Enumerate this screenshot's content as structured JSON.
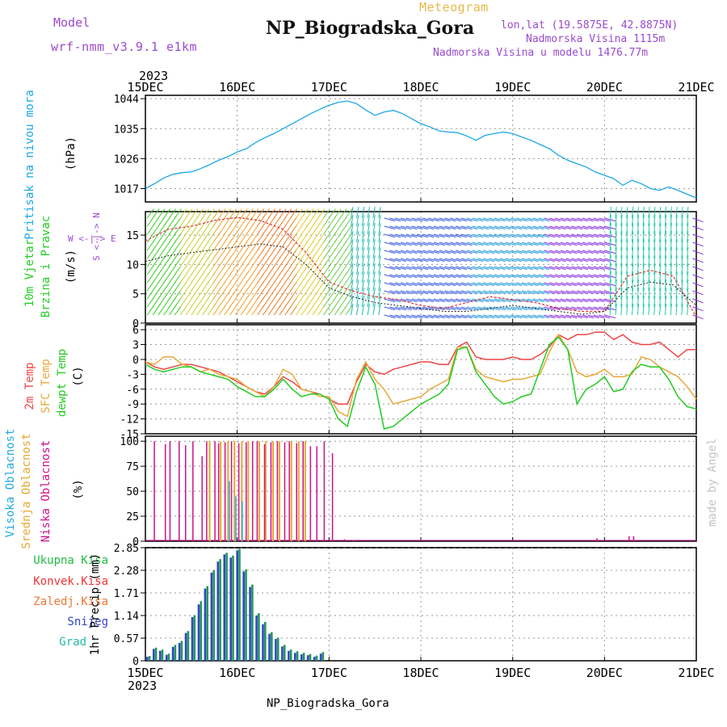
{
  "header": {
    "model_label": "Model",
    "model_name": "wrf-nmm_v3.9.1 e1km",
    "meteogram_label": "Meteogram",
    "station_title": "NP_Biogradska_Gora",
    "lonlat": "lon,lat (19.5875E, 42.8875N)",
    "altitude": "Nadmorska Visina 1115m",
    "model_altitude": "Nadmorska Visina u modelu 1476.77m",
    "year_top": "2023",
    "year_bottom": "2023",
    "footer_station": "NP_Biogradska_Gora",
    "credit": "made by Angel"
  },
  "colors": {
    "pressure": "#1ba7e8",
    "temp2m": "#ee4444",
    "sfc_temp": "#e8a838",
    "dewpt": "#22cc22",
    "high_cloud": "#22aadd",
    "mid_cloud": "#e8a830",
    "low_cloud": "#cc1188",
    "total_precip": "#22bb44",
    "conv_precip": "#ee3333",
    "freezing_precip": "#ee7733",
    "snow": "#3344cc",
    "hail": "#22bbaa",
    "purple_text": "#9a4ad0",
    "gold_text": "#e8b84a"
  },
  "chart_data": [
    {
      "type": "line",
      "id": "pressure",
      "ylabel_main": "Pritisak na nivou mora",
      "ylabel_unit": "(hPa)",
      "x_tick_labels": [
        "15DEC",
        "16DEC",
        "17DEC",
        "18DEC",
        "19DEC",
        "20DEC",
        "21DEC"
      ],
      "ylim": [
        1013,
        1045
      ],
      "yticks": [
        1017,
        1026,
        1035,
        1044
      ],
      "grid": true,
      "x_days": [
        0,
        0.1,
        0.2,
        0.3,
        0.4,
        0.5,
        0.6,
        0.7,
        0.8,
        0.9,
        1.0,
        1.1,
        1.2,
        1.3,
        1.4,
        1.5,
        1.6,
        1.7,
        1.8,
        1.9,
        2.0,
        2.1,
        2.2,
        2.3,
        2.4,
        2.5,
        2.6,
        2.7,
        2.8,
        2.9,
        3.0,
        3.1,
        3.2,
        3.3,
        3.4,
        3.5,
        3.6,
        3.7,
        3.8,
        3.9,
        4.0,
        4.1,
        4.2,
        4.3,
        4.4,
        4.5,
        4.6,
        4.7,
        4.8,
        4.9,
        5.0,
        5.1,
        5.2,
        5.3,
        5.4,
        5.5,
        5.6,
        5.7,
        5.8,
        5.9,
        6.0
      ],
      "values": [
        1017.0,
        1018.5,
        1020.2,
        1021.3,
        1021.8,
        1022.0,
        1023.0,
        1024.2,
        1025.5,
        1026.6,
        1028.0,
        1029.0,
        1030.8,
        1032.3,
        1033.5,
        1035.0,
        1036.5,
        1038.0,
        1039.5,
        1040.8,
        1042.0,
        1042.9,
        1043.3,
        1042.5,
        1040.6,
        1039.0,
        1040.0,
        1040.5,
        1039.5,
        1038.0,
        1036.5,
        1035.5,
        1034.3,
        1034.0,
        1033.8,
        1032.8,
        1031.5,
        1033.0,
        1033.5,
        1034.0,
        1033.5,
        1032.5,
        1031.5,
        1030.2,
        1029.0,
        1027.0,
        1025.5,
        1024.5,
        1023.5,
        1022.0,
        1021.0,
        1020.0,
        1018.0,
        1019.5,
        1018.5,
        1017.0,
        1016.5,
        1017.5,
        1016.5,
        1015.3,
        1014.2
      ]
    },
    {
      "type": "barbs",
      "id": "wind",
      "ylabel_main": "10m Vjetar",
      "ylabel_sub": "Brzina i Pravac",
      "ylabel_unit": "(m/s)",
      "compass_label": "W <-|-> E",
      "compass_sub": "S <-|-> N",
      "ylim": [
        0,
        19
      ],
      "yticks": [
        0,
        5,
        10,
        15
      ],
      "grid": true,
      "x_days": [
        0,
        0.25,
        0.5,
        0.75,
        1.0,
        1.25,
        1.5,
        1.75,
        2.0,
        2.25,
        2.5,
        2.75,
        3.0,
        3.25,
        3.5,
        3.75,
        4.0,
        4.25,
        4.5,
        4.75,
        5.0,
        5.25,
        5.5,
        5.75,
        6.0
      ],
      "speed_mean": [
        10.5,
        11.5,
        12.0,
        12.5,
        13.0,
        13.5,
        13.0,
        10.0,
        6.0,
        4.5,
        3.5,
        3.0,
        2.5,
        2.0,
        2.0,
        2.5,
        3.0,
        2.5,
        2.0,
        1.5,
        2.0,
        6.0,
        7.0,
        6.5,
        3.0
      ],
      "speed_gust": [
        14.0,
        16.0,
        16.5,
        17.5,
        18.0,
        17.5,
        16.0,
        12.0,
        7.0,
        5.5,
        4.5,
        4.0,
        3.0,
        2.5,
        3.5,
        4.5,
        4.0,
        3.5,
        2.5,
        2.0,
        2.0,
        8.0,
        9.0,
        8.0,
        1.0
      ]
    },
    {
      "type": "line",
      "id": "temperature",
      "ylabel_1": "2m Temp",
      "ylabel_2": "SFC Temp",
      "ylabel_3": "dewpt Temp",
      "ylabel_unit": "(C)",
      "ylim": [
        -15,
        7
      ],
      "yticks": [
        -15,
        -12,
        -9,
        -6,
        -3,
        0,
        3,
        6
      ],
      "grid": true,
      "x_days": [
        0,
        0.1,
        0.2,
        0.3,
        0.4,
        0.5,
        0.6,
        0.7,
        0.8,
        0.9,
        1.0,
        1.1,
        1.2,
        1.3,
        1.4,
        1.5,
        1.6,
        1.7,
        1.8,
        1.9,
        2.0,
        2.1,
        2.2,
        2.3,
        2.4,
        2.5,
        2.6,
        2.7,
        2.8,
        2.9,
        3.0,
        3.1,
        3.2,
        3.3,
        3.4,
        3.5,
        3.6,
        3.7,
        3.8,
        3.9,
        4.0,
        4.1,
        4.2,
        4.3,
        4.4,
        4.5,
        4.6,
        4.7,
        4.8,
        4.9,
        5.0,
        5.1,
        5.2,
        5.3,
        5.4,
        5.5,
        5.6,
        5.7,
        5.8,
        5.9,
        6.0
      ],
      "series": [
        {
          "name": "2m Temp",
          "values": [
            -0.5,
            -1.5,
            -2.0,
            -1.5,
            -1.0,
            -1.0,
            -1.5,
            -2.0,
            -2.5,
            -3.5,
            -4.5,
            -5.5,
            -6.5,
            -7.0,
            -5.5,
            -3.5,
            -4.5,
            -6.0,
            -6.5,
            -7.0,
            -8.0,
            -9.0,
            -9.0,
            -4.5,
            -1.0,
            -2.5,
            -3.0,
            -2.0,
            -1.5,
            -1.0,
            -0.5,
            -0.5,
            -1.0,
            -1.0,
            2.5,
            3.5,
            0.5,
            0.0,
            0.0,
            0.0,
            0.5,
            0.0,
            0.0,
            1.0,
            2.5,
            5.0,
            4.0,
            5.0,
            5.0,
            5.5,
            5.5,
            4.0,
            5.0,
            3.5,
            3.0,
            3.0,
            3.5,
            2.0,
            0.5,
            2.0,
            2.0
          ]
        },
        {
          "name": "SFC Temp",
          "values": [
            -0.5,
            -1.0,
            0.5,
            0.5,
            -1.0,
            -1.5,
            -2.5,
            -2.0,
            -3.0,
            -3.5,
            -4.0,
            -5.5,
            -6.5,
            -7.5,
            -5.5,
            -2.0,
            -3.0,
            -6.0,
            -6.5,
            -7.5,
            -7.5,
            -10.5,
            -11.5,
            -4.0,
            -0.5,
            -4.0,
            -6.0,
            -9.0,
            -8.5,
            -8.0,
            -7.5,
            -6.0,
            -5.0,
            -4.0,
            2.5,
            2.5,
            -2.0,
            -3.5,
            -4.0,
            -4.5,
            -4.0,
            -4.0,
            -3.5,
            -3.0,
            1.5,
            5.0,
            2.0,
            -2.5,
            -3.5,
            -3.0,
            -2.0,
            -3.5,
            -3.5,
            -3.0,
            0.5,
            0.0,
            -1.5,
            -2.5,
            -3.5,
            -5.5,
            -8.0
          ]
        },
        {
          "name": "dewpt Temp",
          "values": [
            -1.0,
            -2.0,
            -2.5,
            -2.0,
            -1.5,
            -1.5,
            -2.5,
            -3.0,
            -3.5,
            -4.0,
            -5.5,
            -6.5,
            -7.5,
            -7.5,
            -6.0,
            -4.0,
            -6.0,
            -7.5,
            -7.0,
            -7.0,
            -8.0,
            -12.0,
            -13.5,
            -6.5,
            -1.5,
            -5.0,
            -14.0,
            -13.5,
            -12.0,
            -10.5,
            -9.0,
            -8.0,
            -7.0,
            -5.0,
            2.0,
            2.5,
            -2.5,
            -5.0,
            -7.5,
            -9.0,
            -8.5,
            -7.5,
            -7.0,
            -2.0,
            3.0,
            4.5,
            2.0,
            -9.0,
            -6.0,
            -5.0,
            -3.5,
            -6.5,
            -6.0,
            -2.5,
            -1.0,
            -1.5,
            -1.5,
            -4.0,
            -7.5,
            -9.5,
            -10.0
          ]
        }
      ]
    },
    {
      "type": "bar",
      "id": "clouds",
      "ylabel_1": "Visoka Oblacnost",
      "ylabel_2": "Srednja Oblacnost",
      "ylabel_3": "Niska Oblacnost",
      "ylabel_unit": "(%)",
      "ylim": [
        0,
        105
      ],
      "yticks": [
        0,
        25,
        50,
        75,
        100
      ],
      "grid": true,
      "low_x_days": [
        0.08,
        0.2,
        0.25,
        0.35,
        0.42,
        0.5,
        0.6,
        0.65,
        0.74,
        0.78,
        0.85,
        0.92,
        1.0,
        1.08,
        1.15,
        1.2,
        1.28,
        1.35,
        1.42,
        1.5,
        1.55,
        1.63,
        1.7,
        1.78,
        1.85,
        1.93,
        2.02,
        2.15,
        2.25,
        4.9,
        5.25,
        5.3
      ],
      "low_values": [
        100,
        97,
        100,
        100,
        96,
        100,
        85,
        100,
        100,
        98,
        99,
        100,
        98,
        99,
        100,
        100,
        97,
        99,
        100,
        99,
        100,
        98,
        100,
        95,
        95,
        100,
        88,
        2,
        1,
        3,
        5,
        5
      ],
      "mid_x_days": [
        0.7,
        0.82,
        0.9,
        0.97,
        1.05,
        1.12,
        1.24,
        1.31,
        1.39,
        1.46,
        1.59,
        1.67,
        1.74
      ],
      "mid_values": [
        100,
        100,
        100,
        100,
        100,
        100,
        100,
        100,
        100,
        100,
        100,
        100,
        100
      ],
      "high_x_days": [
        0.88,
        0.95,
        1.02
      ],
      "high_values": [
        60,
        45,
        40
      ]
    },
    {
      "type": "bar",
      "id": "precip",
      "legend": [
        "Ukupna Kisa",
        "Konvek.Kisa",
        "Zaledj.Kisa",
        "Snijeg",
        "Grad"
      ],
      "ylabel_unit": "1hr Precip (mm)",
      "ylim": [
        0,
        2.85
      ],
      "yticks": [
        0,
        0.57,
        1.14,
        1.71,
        2.28,
        2.85
      ],
      "grid": true,
      "x_days": [
        0.03,
        0.1,
        0.17,
        0.24,
        0.31,
        0.38,
        0.45,
        0.52,
        0.59,
        0.66,
        0.73,
        0.8,
        0.87,
        0.94,
        1.01,
        1.08,
        1.15,
        1.22,
        1.29,
        1.36,
        1.43,
        1.5,
        1.57,
        1.64,
        1.71,
        1.78,
        1.85,
        1.92
      ],
      "total_values": [
        0.12,
        0.33,
        0.28,
        0.18,
        0.4,
        0.5,
        0.75,
        1.15,
        1.5,
        1.88,
        2.28,
        2.56,
        2.72,
        2.65,
        2.82,
        2.3,
        1.92,
        1.2,
        0.98,
        0.72,
        0.58,
        0.4,
        0.28,
        0.24,
        0.2,
        0.17,
        0.13,
        0.22
      ],
      "snow_values": [
        0.1,
        0.3,
        0.25,
        0.15,
        0.35,
        0.45,
        0.7,
        1.1,
        1.42,
        1.82,
        2.22,
        2.5,
        2.68,
        2.6,
        2.78,
        2.25,
        1.86,
        1.14,
        0.92,
        0.68,
        0.55,
        0.36,
        0.25,
        0.2,
        0.16,
        0.14,
        0.1,
        0.18
      ]
    }
  ]
}
